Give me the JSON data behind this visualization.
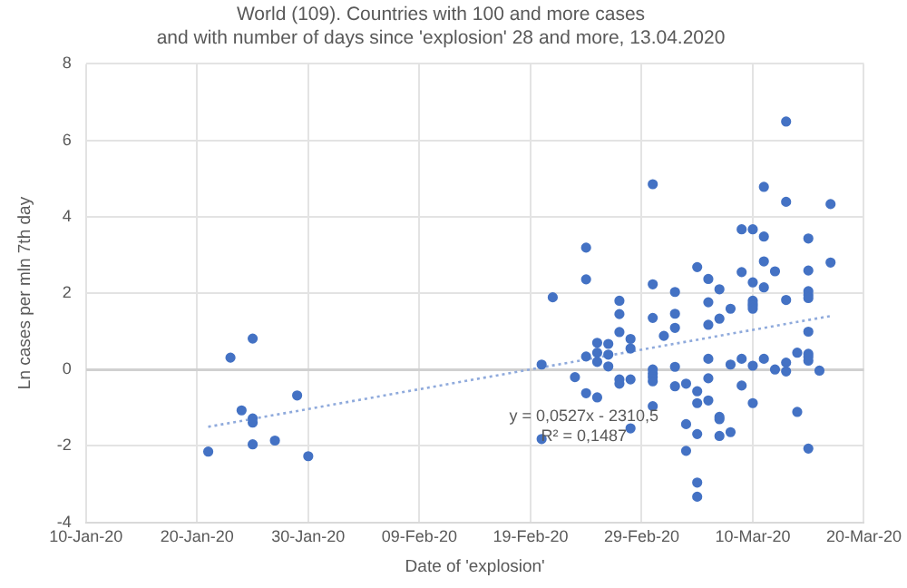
{
  "chart_data": {
    "type": "scatter",
    "title": "World (109). Countries with 100 and more cases\nand with number of days since 'explosion' 28 and more, 13.04.2020",
    "xlabel": "Date of 'explosion'",
    "ylabel": "Ln cases per mln 7th day",
    "annotations": [
      "y = 0,0527x - 2310,5",
      "R² = 0,1487"
    ],
    "xlim": [
      "2020-01-10",
      "2020-03-20"
    ],
    "xticks": [
      {
        "value": "2020-01-10",
        "label": "10-Jan-20"
      },
      {
        "value": "2020-01-20",
        "label": "20-Jan-20"
      },
      {
        "value": "2020-01-30",
        "label": "30-Jan-20"
      },
      {
        "value": "2020-02-09",
        "label": "09-Feb-20"
      },
      {
        "value": "2020-02-19",
        "label": "19-Feb-20"
      },
      {
        "value": "2020-02-29",
        "label": "29-Feb-20"
      },
      {
        "value": "2020-03-10",
        "label": "10-Mar-20"
      },
      {
        "value": "2020-03-20",
        "label": "20-Mar-20"
      }
    ],
    "ylim": [
      -4,
      8
    ],
    "yticks": [
      -4,
      -2,
      0,
      2,
      4,
      6,
      8
    ],
    "grid": true,
    "legend": false,
    "marker": "circle",
    "series": [
      {
        "color": "#4472c4",
        "x": [
          "2020-01-25",
          "2020-01-23",
          "2020-01-29",
          "2020-01-24",
          "2020-01-25",
          "2020-01-25",
          "2020-01-27",
          "2020-01-25",
          "2020-01-21",
          "2020-01-30",
          "2020-03-01",
          "2020-02-24",
          "2020-02-24",
          "2020-03-01",
          "2020-03-03",
          "2020-02-21",
          "2020-02-27",
          "2020-02-27",
          "2020-03-01",
          "2020-03-03",
          "2020-03-03",
          "2020-02-27",
          "2020-03-02",
          "2020-02-28",
          "2020-02-25",
          "2020-02-26",
          "2020-02-28",
          "2020-02-25",
          "2020-02-26",
          "2020-02-24",
          "2020-02-25",
          "2020-02-20",
          "2020-02-26",
          "2020-03-01",
          "2020-03-01",
          "2020-03-03",
          "2020-03-01",
          "2020-02-23",
          "2020-02-27",
          "2020-02-28",
          "2020-02-27",
          "2020-03-01",
          "2020-03-04",
          "2020-03-03",
          "2020-02-24",
          "2020-02-25",
          "2020-03-01",
          "2020-03-04",
          "2020-02-28",
          "2020-02-20",
          "2020-03-04",
          "2020-03-13",
          "2020-03-11",
          "2020-03-13",
          "2020-03-17",
          "2020-03-09",
          "2020-03-10",
          "2020-03-11",
          "2020-03-15",
          "2020-03-05",
          "2020-03-11",
          "2020-03-06",
          "2020-03-09",
          "2020-03-12",
          "2020-03-15",
          "2020-03-17",
          "2020-03-07",
          "2020-03-10",
          "2020-03-11",
          "2020-03-15",
          "2020-03-15",
          "2020-03-15",
          "2020-03-06",
          "2020-03-10",
          "2020-03-10",
          "2020-03-10",
          "2020-03-10",
          "2020-03-08",
          "2020-03-07",
          "2020-03-06",
          "2020-03-13",
          "2020-03-15",
          "2020-03-05",
          "2020-03-05",
          "2020-03-05",
          "2020-03-05",
          "2020-03-05",
          "2020-03-06",
          "2020-03-06",
          "2020-03-06",
          "2020-03-07",
          "2020-03-07",
          "2020-03-07",
          "2020-03-08",
          "2020-03-08",
          "2020-03-09",
          "2020-03-09",
          "2020-03-10",
          "2020-03-10",
          "2020-03-11",
          "2020-03-12",
          "2020-03-13",
          "2020-03-13",
          "2020-03-14",
          "2020-03-14",
          "2020-03-15",
          "2020-03-15",
          "2020-03-15",
          "2020-03-16",
          "2020-03-15"
        ],
        "values": [
          0.81,
          0.31,
          -0.68,
          -1.07,
          -1.28,
          -1.39,
          -1.86,
          -1.96,
          -2.15,
          -2.27,
          4.85,
          3.19,
          2.36,
          2.23,
          2.03,
          1.89,
          1.8,
          1.45,
          1.35,
          1.46,
          1.09,
          0.98,
          0.88,
          0.8,
          0.7,
          0.67,
          0.55,
          0.44,
          0.39,
          0.34,
          0.2,
          0.13,
          0.08,
          0.0,
          -0.11,
          0.07,
          -0.2,
          -0.2,
          -0.26,
          -0.26,
          -0.37,
          -0.31,
          -0.37,
          -0.44,
          -0.62,
          -0.73,
          -0.96,
          -1.43,
          -1.54,
          -1.82,
          -2.13,
          6.49,
          4.78,
          4.39,
          4.33,
          3.67,
          3.67,
          3.48,
          3.43,
          2.68,
          2.83,
          2.37,
          2.55,
          2.57,
          2.59,
          2.8,
          2.1,
          2.28,
          2.15,
          2.05,
          1.95,
          1.87,
          1.76,
          1.8,
          1.72,
          1.66,
          1.59,
          1.59,
          1.33,
          1.17,
          1.82,
          0.99,
          -0.57,
          -0.88,
          -1.69,
          -2.96,
          -3.33,
          0.28,
          -0.23,
          -0.81,
          -1.24,
          -1.3,
          -1.74,
          0.13,
          -1.64,
          0.28,
          -0.42,
          0.1,
          -0.88,
          0.28,
          0.0,
          0.18,
          -0.05,
          0.44,
          -1.11,
          0.41,
          0.33,
          0.23,
          -0.03,
          -2.07
        ]
      },
      {
        "type": "line",
        "color": "#8faadc",
        "line_style": "dotted",
        "marker": "none",
        "x": [
          "2020-01-21",
          "2020-03-17"
        ],
        "values": [
          -1.5,
          1.4
        ]
      }
    ]
  }
}
